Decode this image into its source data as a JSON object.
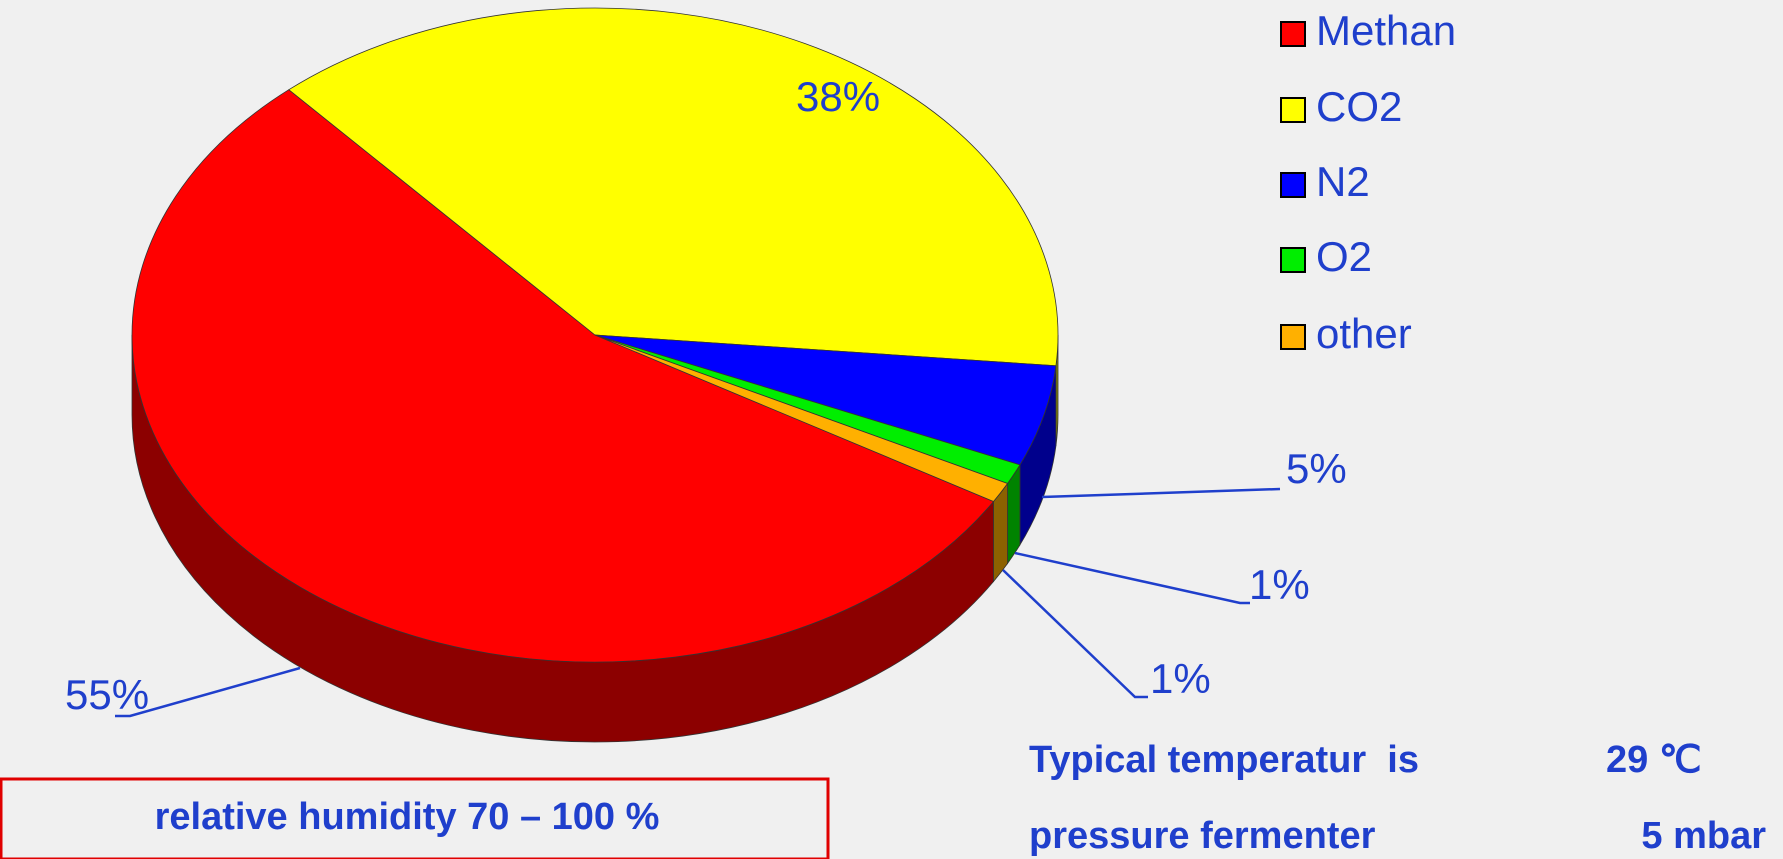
{
  "chart_data": {
    "type": "pie",
    "categories": [
      "Methan",
      "CO2",
      "N2",
      "O2",
      "other"
    ],
    "values": [
      55,
      38,
      5,
      1,
      1
    ],
    "value_labels": [
      "55%",
      "38%",
      "5%",
      "1%",
      "1%"
    ],
    "colors": [
      "#ff0000",
      "#ffff00",
      "#0000ff",
      "#00ee00",
      "#ffb000"
    ],
    "legend": "right",
    "annotations": [
      "relative humidity 70 – 100 %",
      "Typical temperatur  is",
      "29 ℃",
      "pressure fermenter",
      "5 mbar"
    ]
  }
}
